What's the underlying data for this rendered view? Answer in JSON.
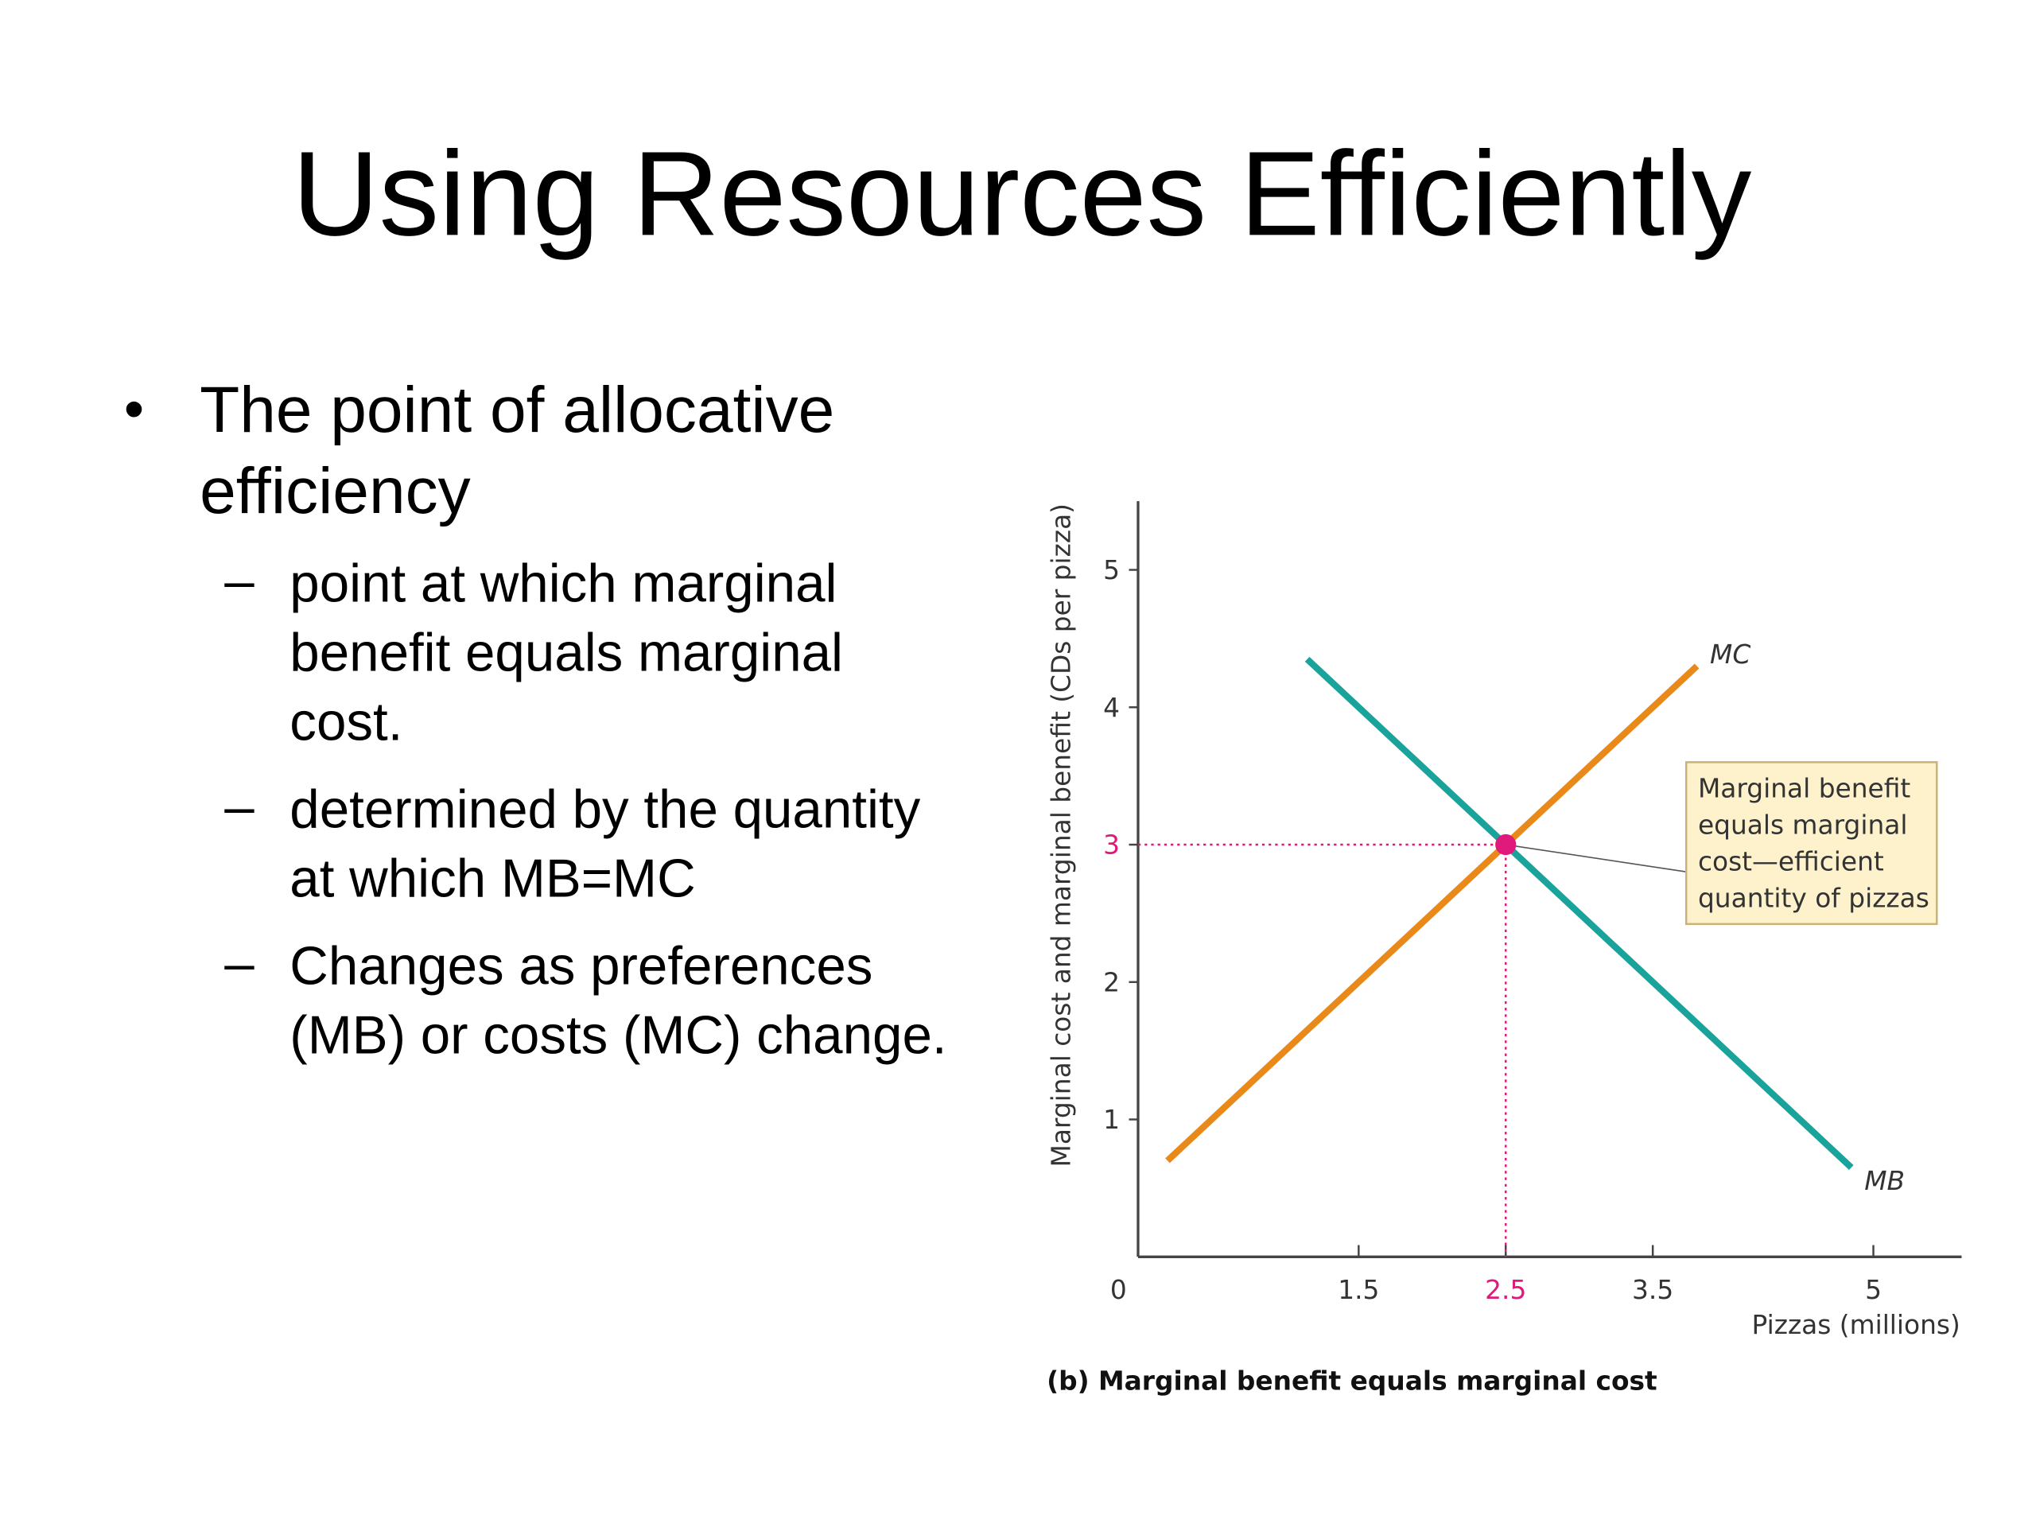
{
  "title": "Using Resources Efficiently",
  "bullets": [
    {
      "text": "The point of allocative efficiency",
      "sub": [
        "point at which marginal benefit equals marginal cost.",
        "determined by the quantity at which MB=MC",
        "Changes as preferences (MB) or costs (MC) change."
      ]
    }
  ],
  "chart_data": {
    "type": "line",
    "caption": "(b) Marginal benefit equals marginal cost",
    "x_label": "Pizzas (millions)",
    "y_label": "Marginal cost and marginal benefit (CDs per pizza)",
    "xlim": [
      0,
      5.6
    ],
    "ylim": [
      0,
      5.5
    ],
    "xticks": [
      0,
      1.5,
      2.5,
      3.5,
      5
    ],
    "yticks": [
      1,
      2,
      3,
      4,
      5
    ],
    "series": [
      {
        "name": "MB",
        "color": "#1aa39a",
        "x": [
          1.15,
          4.85
        ],
        "values": [
          4.35,
          0.65
        ]
      },
      {
        "name": "MC",
        "color": "#e8891a",
        "x": [
          0.2,
          3.8
        ],
        "values": [
          0.7,
          4.3
        ]
      }
    ],
    "highlight": {
      "x": 2.5,
      "y": 3,
      "color": "#e0197d"
    },
    "annotation": [
      "Marginal benefit",
      "equals marginal",
      "cost—efficient",
      "quantity of pizzas"
    ]
  }
}
